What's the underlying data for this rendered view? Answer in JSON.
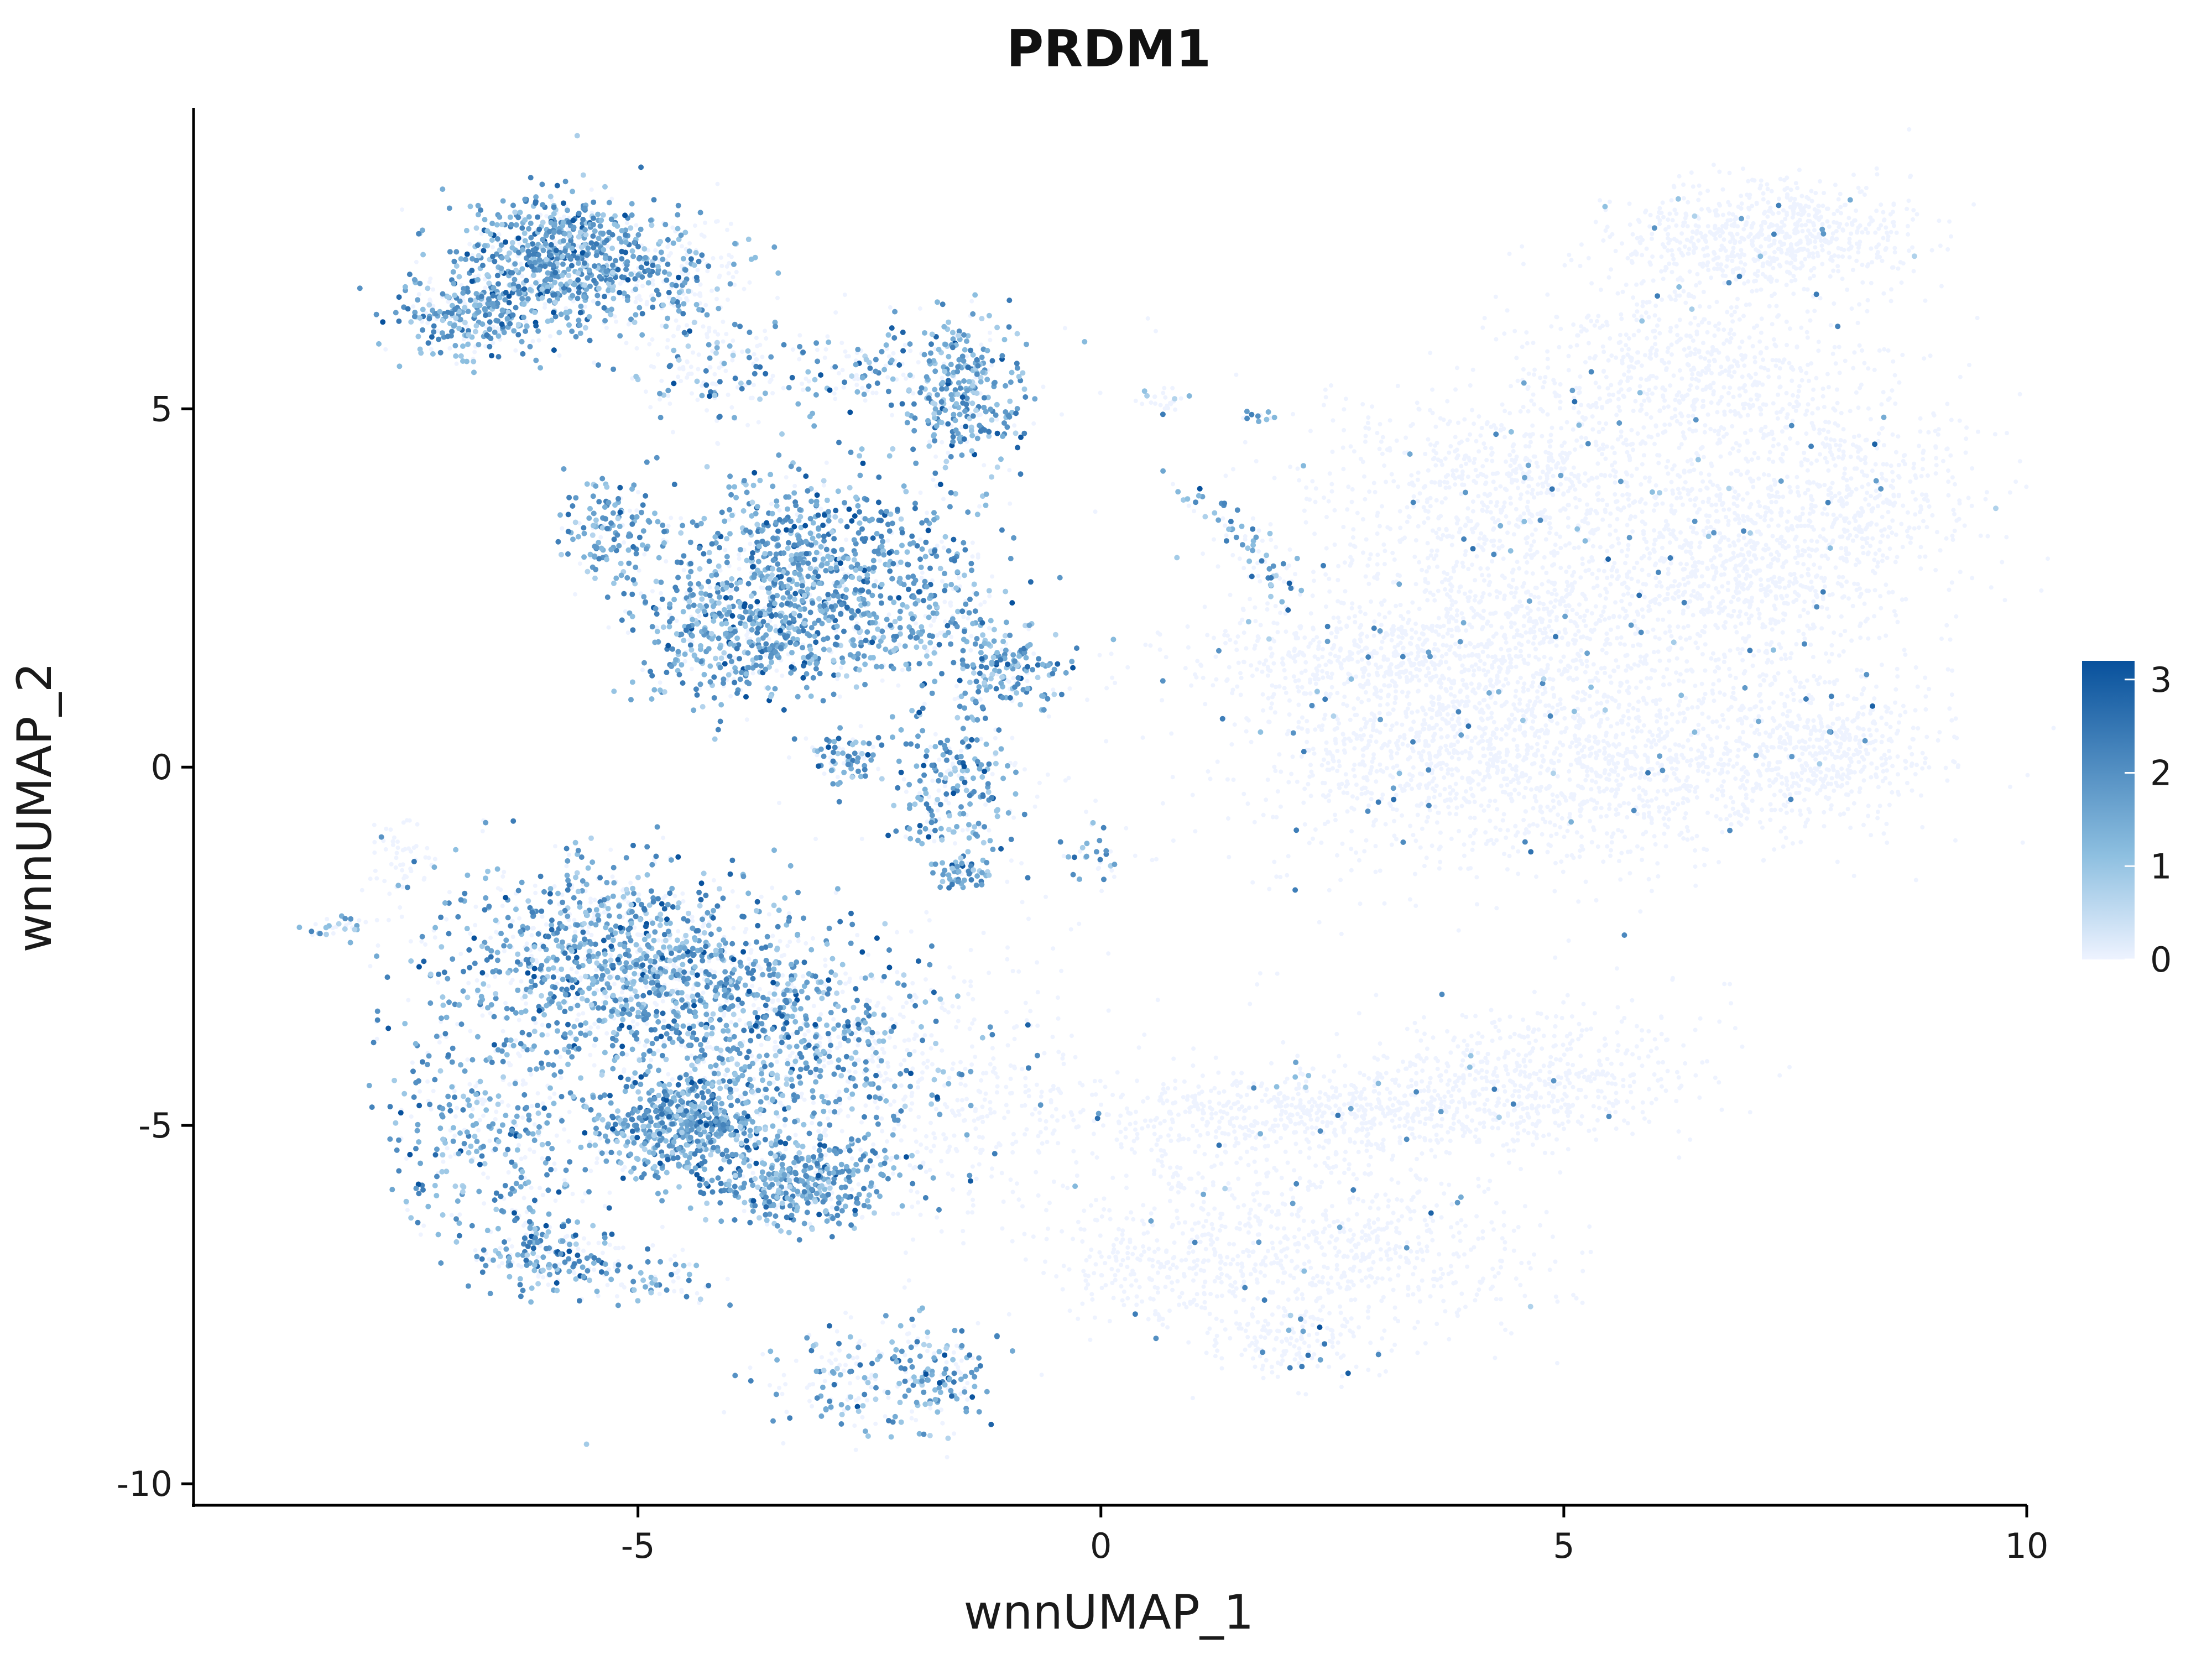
{
  "chart_data": {
    "type": "scatter",
    "title": "PRDM1",
    "xlabel": "wnnUMAP_1",
    "ylabel": "wnnUMAP_2",
    "xlim": [
      -9.8,
      10
    ],
    "ylim": [
      -10.3,
      9.2
    ],
    "x_ticks": [
      {
        "value": -5,
        "label": "-5"
      },
      {
        "value": 0,
        "label": "0"
      },
      {
        "value": 5,
        "label": "5"
      },
      {
        "value": 10,
        "label": "10"
      }
    ],
    "y_ticks": [
      {
        "value": -10,
        "label": "-10"
      },
      {
        "value": -5,
        "label": "-5"
      },
      {
        "value": 0,
        "label": "0"
      },
      {
        "value": 5,
        "label": "5"
      }
    ],
    "grid": false,
    "legend": {
      "placement": "right",
      "type": "colorbar",
      "min": 0,
      "max": 3.2,
      "ticks": [
        {
          "value": 0,
          "label": "0"
        },
        {
          "value": 1,
          "label": "1"
        },
        {
          "value": 2,
          "label": "2"
        },
        {
          "value": 3,
          "label": "3"
        }
      ],
      "low_color": "#eef3ff",
      "mid_color": "#8dbfe0",
      "high_color": "#08519c"
    },
    "clusters": [
      {
        "x": -5.8,
        "y": 7.1,
        "sx": 0.55,
        "sy": 0.45,
        "rot": -0.15,
        "n": 700,
        "expr": 0.85
      },
      {
        "x": -6.8,
        "y": 6.3,
        "sx": 0.4,
        "sy": 0.3,
        "rot": 0.0,
        "n": 300,
        "expr": 0.75
      },
      {
        "x": -4.6,
        "y": 6.8,
        "sx": 0.45,
        "sy": 0.45,
        "rot": 0.0,
        "n": 220,
        "expr": 0.35
      },
      {
        "x": -4.2,
        "y": 5.5,
        "sx": 0.5,
        "sy": 0.35,
        "rot": 0.0,
        "n": 150,
        "expr": 0.4
      },
      {
        "x": -1.5,
        "y": 5.3,
        "sx": 0.35,
        "sy": 0.5,
        "rot": 0.0,
        "n": 320,
        "expr": 0.85
      },
      {
        "x": -2.6,
        "y": 5.6,
        "sx": 0.4,
        "sy": 0.3,
        "rot": 0.0,
        "n": 100,
        "expr": 0.4
      },
      {
        "x": -3.2,
        "y": 2.5,
        "sx": 0.7,
        "sy": 0.75,
        "rot": -0.4,
        "n": 1000,
        "expr": 0.85
      },
      {
        "x": -5.3,
        "y": 3.3,
        "sx": 0.25,
        "sy": 0.35,
        "rot": 0.0,
        "n": 140,
        "expr": 0.9
      },
      {
        "x": -4.1,
        "y": 1.8,
        "sx": 0.55,
        "sy": 0.45,
        "rot": -0.3,
        "n": 240,
        "expr": 0.7
      },
      {
        "x": -1.0,
        "y": 1.4,
        "sx": 0.3,
        "sy": 0.3,
        "rot": 0.0,
        "n": 160,
        "expr": 0.8
      },
      {
        "x": -1.8,
        "y": 2.2,
        "sx": 0.45,
        "sy": 0.6,
        "rot": 0.0,
        "n": 220,
        "expr": 0.6
      },
      {
        "x": -2.8,
        "y": 0.1,
        "sx": 0.2,
        "sy": 0.2,
        "rot": 0.0,
        "n": 70,
        "expr": 0.8
      },
      {
        "x": -1.6,
        "y": -0.3,
        "sx": 0.35,
        "sy": 0.55,
        "rot": 0.0,
        "n": 230,
        "expr": 0.75
      },
      {
        "x": -1.5,
        "y": -1.5,
        "sx": 0.15,
        "sy": 0.12,
        "rot": 0.0,
        "n": 50,
        "expr": 0.9
      },
      {
        "x": -0.1,
        "y": -1.2,
        "sx": 0.15,
        "sy": 0.25,
        "rot": 0.0,
        "n": 30,
        "expr": 0.5
      },
      {
        "x": 0.7,
        "y": 5.1,
        "sx": 0.15,
        "sy": 0.1,
        "rot": 0.0,
        "n": 25,
        "expr": 0.4
      },
      {
        "x": 1.7,
        "y": 4.9,
        "sx": 0.1,
        "sy": 0.05,
        "rot": 0.0,
        "n": 12,
        "expr": 0.35
      },
      {
        "x": 1.6,
        "y": 3.1,
        "sx": 0.6,
        "sy": 0.15,
        "rot": -0.9,
        "n": 90,
        "expr": 0.6
      },
      {
        "x": -5.1,
        "y": -2.8,
        "sx": 1.0,
        "sy": 0.7,
        "rot": -0.3,
        "n": 1300,
        "expr": 0.7
      },
      {
        "x": -4.5,
        "y": -5.0,
        "sx": 0.45,
        "sy": 0.35,
        "rot": 0.0,
        "n": 550,
        "expr": 0.9
      },
      {
        "x": -3.2,
        "y": -5.8,
        "sx": 0.5,
        "sy": 0.3,
        "rot": 0.0,
        "n": 380,
        "expr": 0.9
      },
      {
        "x": -3.3,
        "y": -3.9,
        "sx": 0.9,
        "sy": 0.75,
        "rot": -0.5,
        "n": 700,
        "expr": 0.65
      },
      {
        "x": -6.6,
        "y": -5.0,
        "sx": 0.55,
        "sy": 0.95,
        "rot": 0.3,
        "n": 420,
        "expr": 0.6
      },
      {
        "x": -6.0,
        "y": -6.8,
        "sx": 0.35,
        "sy": 0.25,
        "rot": 0.0,
        "n": 160,
        "expr": 0.75
      },
      {
        "x": -4.9,
        "y": -7.1,
        "sx": 0.5,
        "sy": 0.25,
        "rot": 0.0,
        "n": 80,
        "expr": 0.45
      },
      {
        "x": -2.6,
        "y": -8.6,
        "sx": 0.55,
        "sy": 0.35,
        "rot": 0.0,
        "n": 170,
        "expr": 0.55
      },
      {
        "x": -1.7,
        "y": -8.5,
        "sx": 0.3,
        "sy": 0.4,
        "rot": 0.0,
        "n": 110,
        "expr": 0.65
      },
      {
        "x": -8.2,
        "y": -2.2,
        "sx": 0.3,
        "sy": 0.05,
        "rot": 0.2,
        "n": 30,
        "expr": 0.4
      },
      {
        "x": -7.6,
        "y": -1.3,
        "sx": 0.2,
        "sy": 0.3,
        "rot": 0.0,
        "n": 50,
        "expr": 0.05
      },
      {
        "x": -1.5,
        "y": -4.6,
        "sx": 0.8,
        "sy": 1.0,
        "rot": 0.0,
        "n": 300,
        "expr": 0.03
      },
      {
        "x": 7.2,
        "y": 7.4,
        "sx": 0.8,
        "sy": 0.35,
        "rot": 0.0,
        "n": 700,
        "expr": 0.02
      },
      {
        "x": 6.4,
        "y": 5.6,
        "sx": 1.0,
        "sy": 0.7,
        "rot": 0.2,
        "n": 700,
        "expr": 0.02
      },
      {
        "x": 4.5,
        "y": 4.0,
        "sx": 1.0,
        "sy": 0.6,
        "rot": 0.0,
        "n": 650,
        "expr": 0.02
      },
      {
        "x": 7.8,
        "y": 3.6,
        "sx": 0.9,
        "sy": 0.7,
        "rot": 0.3,
        "n": 700,
        "expr": 0.02
      },
      {
        "x": 6.9,
        "y": 2.6,
        "sx": 0.8,
        "sy": 0.6,
        "rot": 0.0,
        "n": 500,
        "expr": 0.02
      },
      {
        "x": 4.5,
        "y": 2.0,
        "sx": 1.1,
        "sy": 0.9,
        "rot": 0.0,
        "n": 900,
        "expr": 0.02
      },
      {
        "x": 2.8,
        "y": 1.5,
        "sx": 1.0,
        "sy": 0.35,
        "rot": 0.0,
        "n": 450,
        "expr": 0.02
      },
      {
        "x": 5.3,
        "y": 0.0,
        "sx": 1.6,
        "sy": 0.7,
        "rot": 0.1,
        "n": 1300,
        "expr": 0.02
      },
      {
        "x": 7.8,
        "y": 0.3,
        "sx": 0.6,
        "sy": 0.55,
        "rot": 0.0,
        "n": 450,
        "expr": 0.02
      },
      {
        "x": 3.3,
        "y": 0.3,
        "sx": 0.8,
        "sy": 0.5,
        "rot": 0.0,
        "n": 350,
        "expr": 0.02
      },
      {
        "x": 4.5,
        "y": -4.4,
        "sx": 1.0,
        "sy": 0.45,
        "rot": 0.2,
        "n": 600,
        "expr": 0.02
      },
      {
        "x": 2.0,
        "y": -4.8,
        "sx": 1.5,
        "sy": 0.3,
        "rot": 0.0,
        "n": 600,
        "expr": 0.02
      },
      {
        "x": 2.4,
        "y": -6.6,
        "sx": 1.2,
        "sy": 0.6,
        "rot": -0.2,
        "n": 700,
        "expr": 0.02
      },
      {
        "x": 2.0,
        "y": -8.0,
        "sx": 0.45,
        "sy": 0.3,
        "rot": 0.0,
        "n": 180,
        "expr": 0.05
      },
      {
        "x": 0.6,
        "y": -7.0,
        "sx": 0.55,
        "sy": 0.4,
        "rot": 0.0,
        "n": 200,
        "expr": 0.02
      },
      {
        "x": 1.5,
        "y": 0.5,
        "sx": 2.5,
        "sy": 2.5,
        "rot": 0.0,
        "n": 120,
        "expr": 0.03
      }
    ]
  }
}
